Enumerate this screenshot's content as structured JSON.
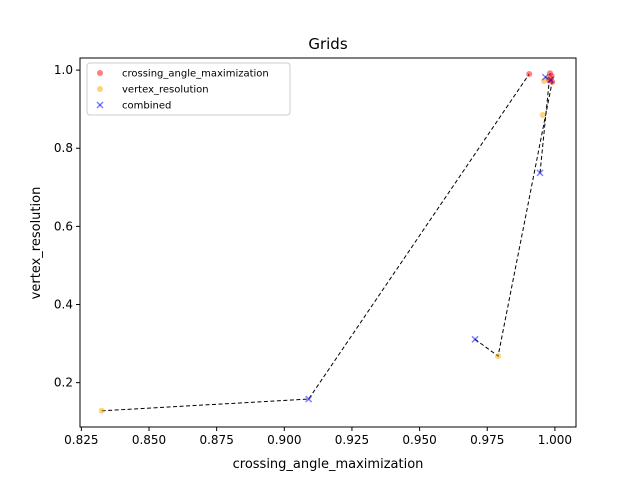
{
  "chart_data": {
    "type": "scatter",
    "title": "Grids",
    "xlabel": "crossing_angle_maximization",
    "ylabel": "vertex_resolution",
    "xlim": [
      0.8245,
      1.0078
    ],
    "ylim": [
      0.0865,
      1.031
    ],
    "x_ticks": [
      0.825,
      0.85,
      0.875,
      0.9,
      0.925,
      0.95,
      0.975,
      1.0
    ],
    "x_tick_labels": [
      "0.825",
      "0.850",
      "0.875",
      "0.900",
      "0.925",
      "0.950",
      "0.975",
      "1.000"
    ],
    "y_ticks": [
      0.2,
      0.4,
      0.6,
      0.8,
      1.0
    ],
    "y_tick_labels": [
      "0.2",
      "0.4",
      "0.6",
      "0.8",
      "1.0"
    ],
    "grid": false,
    "legend_position": "top-left",
    "series": [
      {
        "name": "crossing_angle_maximization",
        "marker": "circle",
        "color": "#ff0000",
        "points": [
          {
            "x": 0.9905,
            "y": 0.99
          },
          {
            "x": 0.9982,
            "y": 0.992
          },
          {
            "x": 0.9988,
            "y": 0.985
          },
          {
            "x": 0.9985,
            "y": 0.978
          },
          {
            "x": 0.999,
            "y": 0.97
          },
          {
            "x": 0.9978,
            "y": 0.974
          }
        ]
      },
      {
        "name": "vertex_resolution",
        "marker": "circle",
        "color": "#ffa500",
        "points": [
          {
            "x": 0.8325,
            "y": 0.128
          },
          {
            "x": 0.979,
            "y": 0.268
          },
          {
            "x": 0.9955,
            "y": 0.885
          },
          {
            "x": 0.996,
            "y": 0.972
          },
          {
            "x": 0.9975,
            "y": 0.98
          }
        ]
      },
      {
        "name": "combined",
        "marker": "x",
        "color": "#0000ff",
        "points": [
          {
            "x": 0.909,
            "y": 0.158
          },
          {
            "x": 0.9705,
            "y": 0.311
          },
          {
            "x": 0.9945,
            "y": 0.737
          },
          {
            "x": 0.9965,
            "y": 0.982
          },
          {
            "x": 0.9985,
            "y": 0.975
          }
        ]
      }
    ],
    "front_lines": [
      {
        "color": "#000000",
        "style": "dashed",
        "points": [
          {
            "x": 0.8325,
            "y": 0.128
          },
          {
            "x": 0.909,
            "y": 0.158
          },
          {
            "x": 0.9905,
            "y": 0.99
          }
        ]
      },
      {
        "color": "#000000",
        "style": "dashed",
        "points": [
          {
            "x": 0.9705,
            "y": 0.311
          },
          {
            "x": 0.979,
            "y": 0.268
          },
          {
            "x": 0.999,
            "y": 0.97
          }
        ]
      },
      {
        "color": "#000000",
        "style": "dashed",
        "points": [
          {
            "x": 0.9945,
            "y": 0.737
          },
          {
            "x": 0.9982,
            "y": 0.992
          }
        ]
      },
      {
        "color": "#000000",
        "style": "dashed",
        "points": [
          {
            "x": 0.9965,
            "y": 0.982
          },
          {
            "x": 0.9985,
            "y": 0.975
          }
        ]
      }
    ]
  }
}
